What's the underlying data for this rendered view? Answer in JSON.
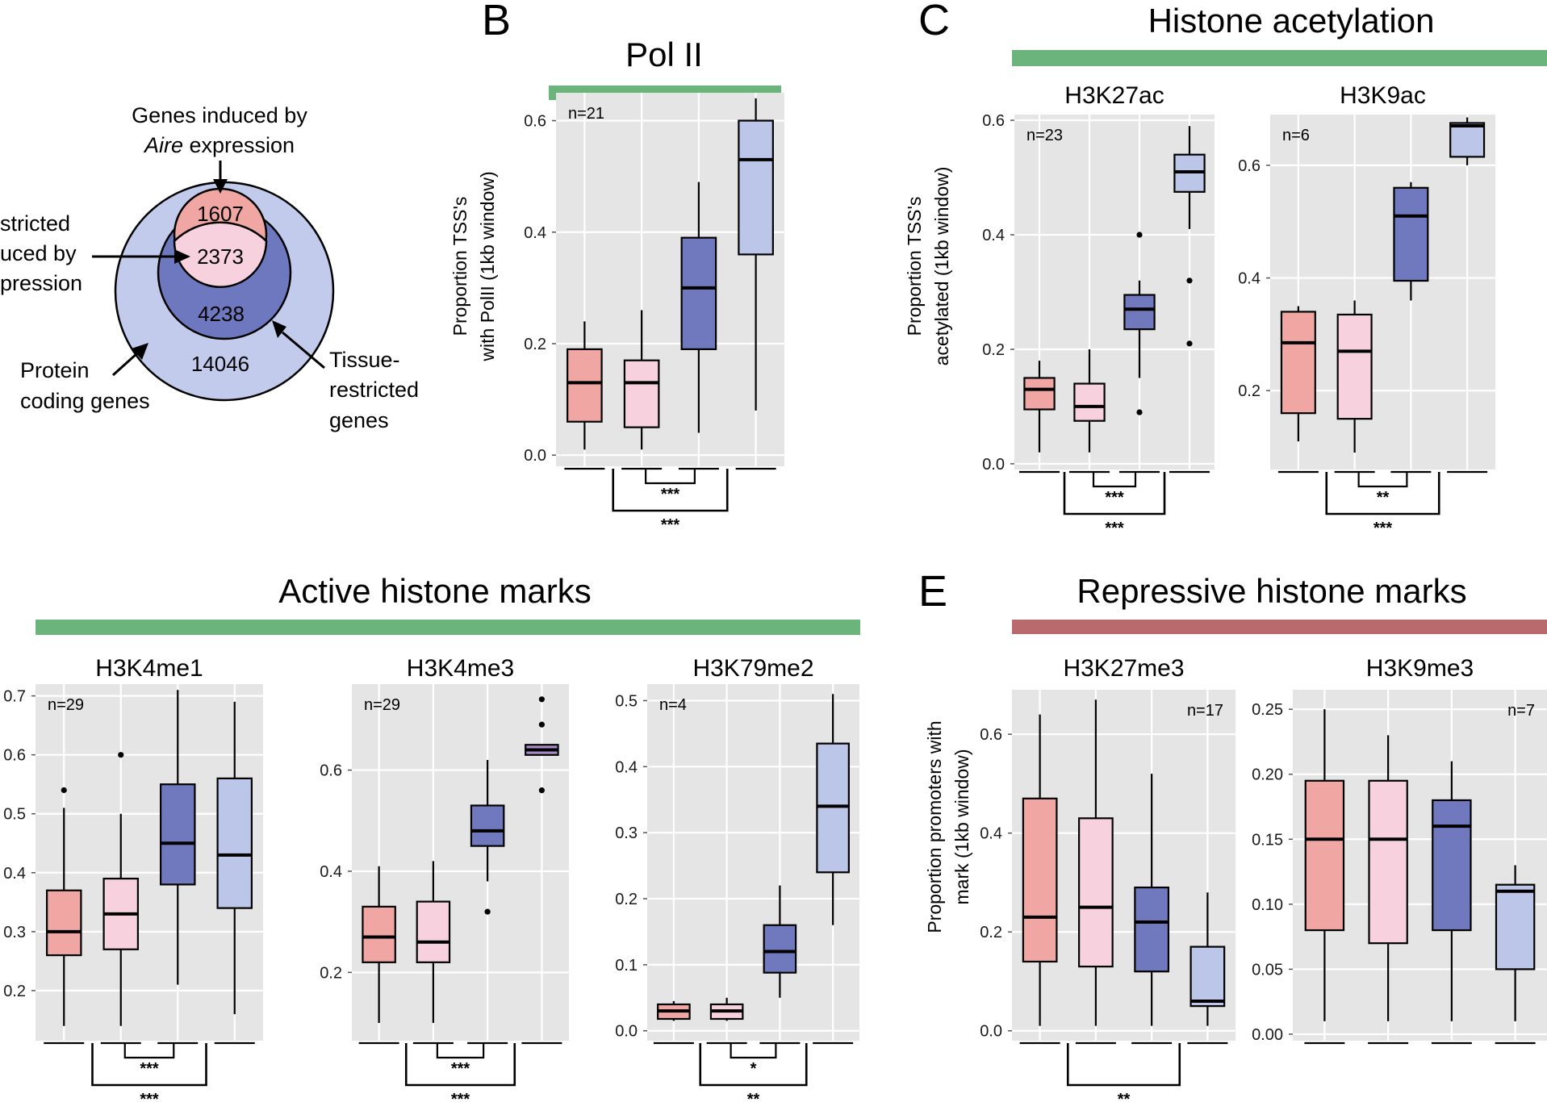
{
  "colors": {
    "group1": "#f0a6a3",
    "group2": "#f7d2de",
    "group3": "#7179be",
    "group4": "#bcc6e8",
    "panel_bg": "#e5e5e5",
    "grid": "#ffffff",
    "bar_active": "#6bb57d",
    "bar_repressive": "#b86a6c",
    "tick_text": "#1a1a1a",
    "venn_outer": "#c3cbec",
    "venn_mid": "#6e78be",
    "venn_top": "#f0a6a3",
    "venn_overlap": "#f7d2de"
  },
  "panel_letters": [
    "B",
    "C",
    "E"
  ],
  "headers": {
    "pol2": "Pol II",
    "acetylation": "Histone acetylation",
    "active": "Active histone marks",
    "repressive": "Repressive histone marks"
  },
  "venn": {
    "label_top_line1": "Genes induced by",
    "label_top_italic": "Aire",
    "label_top_rest": " expression",
    "label_left_line1": "stricted",
    "label_left_line2": "uced by",
    "label_left_line3": "pression",
    "label_protein_line1": "Protein",
    "label_protein_line2": "coding genes",
    "label_tissue_line1": "Tissue-",
    "label_tissue_line2": "restricted",
    "label_tissue_line3": "genes",
    "counts": {
      "top": "1607",
      "overlap": "2373",
      "middle": "4238",
      "outer": "14046"
    }
  },
  "ylabels": {
    "pol2_line1": "Proportion TSS's",
    "pol2_line2": "with PolII (1kb window)",
    "acet_line1": "Proportion TSS's",
    "acet_line2": "acetylated (1kb window)",
    "rep_line1": "Proportion promoters with",
    "rep_line2": "mark (1kb window)"
  },
  "chart_data": [
    {
      "type": "box",
      "id": "pol2",
      "title": "",
      "n_label": "n=21",
      "n_pos": "left",
      "ylim": [
        -0.02,
        0.65
      ],
      "yticks": [
        "0.0",
        "0.2",
        "0.4",
        "0.6"
      ],
      "boxes": [
        {
          "group": 1,
          "whisker_low": 0.01,
          "q1": 0.06,
          "median": 0.13,
          "q3": 0.19,
          "whisker_high": 0.24,
          "outliers": []
        },
        {
          "group": 2,
          "whisker_low": 0.01,
          "q1": 0.05,
          "median": 0.13,
          "q3": 0.17,
          "whisker_high": 0.26,
          "outliers": []
        },
        {
          "group": 3,
          "whisker_low": 0.04,
          "q1": 0.19,
          "median": 0.3,
          "q3": 0.39,
          "whisker_high": 0.49,
          "outliers": []
        },
        {
          "group": 4,
          "whisker_low": 0.08,
          "q1": 0.36,
          "median": 0.53,
          "q3": 0.6,
          "whisker_high": 0.64,
          "outliers": []
        }
      ],
      "sig_inner": "***",
      "sig_outer": "***"
    },
    {
      "type": "box",
      "id": "h3k27ac",
      "title": "H3K27ac",
      "n_label": "n=23",
      "n_pos": "left",
      "ylim": [
        -0.01,
        0.61
      ],
      "yticks": [
        "0.0",
        "0.2",
        "0.4",
        "0.6"
      ],
      "boxes": [
        {
          "group": 1,
          "whisker_low": 0.02,
          "q1": 0.095,
          "median": 0.13,
          "q3": 0.15,
          "whisker_high": 0.18,
          "outliers": []
        },
        {
          "group": 2,
          "whisker_low": 0.02,
          "q1": 0.075,
          "median": 0.1,
          "q3": 0.14,
          "whisker_high": 0.2,
          "outliers": []
        },
        {
          "group": 3,
          "whisker_low": 0.15,
          "q1": 0.235,
          "median": 0.27,
          "q3": 0.295,
          "whisker_high": 0.32,
          "outliers": [
            0.09,
            0.4
          ]
        },
        {
          "group": 4,
          "whisker_low": 0.41,
          "q1": 0.475,
          "median": 0.51,
          "q3": 0.54,
          "whisker_high": 0.59,
          "outliers": [
            0.21,
            0.32
          ]
        }
      ],
      "sig_inner": "***",
      "sig_outer": "***"
    },
    {
      "type": "box",
      "id": "h3k9ac",
      "title": "H3K9ac",
      "n_label": "n=6",
      "n_pos": "left",
      "ylim": [
        0.06,
        0.69
      ],
      "yticks": [
        "0.2",
        "0.4",
        "0.6"
      ],
      "boxes": [
        {
          "group": 1,
          "whisker_low": 0.11,
          "q1": 0.16,
          "median": 0.285,
          "q3": 0.34,
          "whisker_high": 0.35,
          "outliers": []
        },
        {
          "group": 2,
          "whisker_low": 0.09,
          "q1": 0.15,
          "median": 0.27,
          "q3": 0.335,
          "whisker_high": 0.36,
          "outliers": []
        },
        {
          "group": 3,
          "whisker_low": 0.36,
          "q1": 0.395,
          "median": 0.51,
          "q3": 0.56,
          "whisker_high": 0.57,
          "outliers": []
        },
        {
          "group": 4,
          "whisker_low": 0.6,
          "q1": 0.615,
          "median": 0.67,
          "q3": 0.675,
          "whisker_high": 0.685,
          "outliers": []
        }
      ],
      "sig_inner": "**",
      "sig_outer": "***"
    },
    {
      "type": "box",
      "id": "h3k4me1",
      "title": "H3K4me1",
      "n_label": "n=29",
      "n_pos": "left",
      "ylim": [
        0.115,
        0.72
      ],
      "yticks": [
        "0.2",
        "0.3",
        "0.4",
        "0.5",
        "0.6",
        "0.7"
      ],
      "boxes": [
        {
          "group": 1,
          "whisker_low": 0.14,
          "q1": 0.26,
          "median": 0.3,
          "q3": 0.37,
          "whisker_high": 0.51,
          "outliers": [
            0.54
          ]
        },
        {
          "group": 2,
          "whisker_low": 0.14,
          "q1": 0.27,
          "median": 0.33,
          "q3": 0.39,
          "whisker_high": 0.5,
          "outliers": [
            0.6
          ]
        },
        {
          "group": 3,
          "whisker_low": 0.21,
          "q1": 0.38,
          "median": 0.45,
          "q3": 0.55,
          "whisker_high": 0.71,
          "outliers": []
        },
        {
          "group": 4,
          "whisker_low": 0.16,
          "q1": 0.34,
          "median": 0.43,
          "q3": 0.56,
          "whisker_high": 0.69,
          "outliers": []
        }
      ],
      "sig_inner": "***",
      "sig_outer": "***"
    },
    {
      "type": "box",
      "id": "h3k4me3",
      "title": "H3K4me3",
      "n_label": "n=29",
      "n_pos": "left",
      "ylim": [
        0.065,
        0.77
      ],
      "yticks": [
        "0.2",
        "0.4",
        "0.6"
      ],
      "boxes": [
        {
          "group": 1,
          "whisker_low": 0.1,
          "q1": 0.22,
          "median": 0.27,
          "q3": 0.33,
          "whisker_high": 0.41,
          "outliers": []
        },
        {
          "group": 2,
          "whisker_low": 0.1,
          "q1": 0.22,
          "median": 0.26,
          "q3": 0.34,
          "whisker_high": 0.42,
          "outliers": []
        },
        {
          "group": 3,
          "whisker_low": 0.38,
          "q1": 0.45,
          "median": 0.48,
          "q3": 0.53,
          "whisker_high": 0.62,
          "outliers": [
            0.32
          ]
        },
        {
          "group": 4,
          "whisker_low": 0.63,
          "q1": 0.63,
          "median": 0.64,
          "q3": 0.65,
          "whisker_high": 0.65,
          "outliers": [
            0.56,
            0.69,
            0.74
          ]
        }
      ],
      "sig_inner": "***",
      "sig_outer": "***"
    },
    {
      "type": "box",
      "id": "h3k79me2",
      "title": "H3K79me2",
      "n_label": "n=4",
      "n_pos": "left",
      "ylim": [
        -0.015,
        0.525
      ],
      "yticks": [
        "0.0",
        "0.1",
        "0.2",
        "0.3",
        "0.4",
        "0.5"
      ],
      "boxes": [
        {
          "group": 1,
          "whisker_low": 0.015,
          "q1": 0.018,
          "median": 0.03,
          "q3": 0.04,
          "whisker_high": 0.045,
          "outliers": []
        },
        {
          "group": 2,
          "whisker_low": 0.015,
          "q1": 0.018,
          "median": 0.03,
          "q3": 0.04,
          "whisker_high": 0.05,
          "outliers": []
        },
        {
          "group": 3,
          "whisker_low": 0.05,
          "q1": 0.088,
          "median": 0.12,
          "q3": 0.16,
          "whisker_high": 0.22,
          "outliers": []
        },
        {
          "group": 4,
          "whisker_low": 0.16,
          "q1": 0.24,
          "median": 0.34,
          "q3": 0.435,
          "whisker_high": 0.51,
          "outliers": []
        }
      ],
      "sig_inner": "*",
      "sig_outer": "**"
    },
    {
      "type": "box",
      "id": "h3k27me3",
      "title": "H3K27me3",
      "n_label": "n=17",
      "n_pos": "right",
      "ylim": [
        -0.02,
        0.69
      ],
      "yticks": [
        "0.0",
        "0.2",
        "0.4",
        "0.6"
      ],
      "boxes": [
        {
          "group": 1,
          "whisker_low": 0.01,
          "q1": 0.14,
          "median": 0.23,
          "q3": 0.47,
          "whisker_high": 0.64,
          "outliers": []
        },
        {
          "group": 2,
          "whisker_low": 0.01,
          "q1": 0.13,
          "median": 0.25,
          "q3": 0.43,
          "whisker_high": 0.67,
          "outliers": []
        },
        {
          "group": 3,
          "whisker_low": 0.01,
          "q1": 0.12,
          "median": 0.22,
          "q3": 0.29,
          "whisker_high": 0.52,
          "outliers": []
        },
        {
          "group": 4,
          "whisker_low": 0.01,
          "q1": 0.05,
          "median": 0.06,
          "q3": 0.17,
          "whisker_high": 0.28,
          "outliers": []
        }
      ],
      "sig_inner": "",
      "sig_outer": "**"
    },
    {
      "type": "box",
      "id": "h3k9me3",
      "title": "H3K9me3",
      "n_label": "n=7",
      "n_pos": "right",
      "ylim": [
        -0.005,
        0.265
      ],
      "yticks": [
        "0.00",
        "0.05",
        "0.10",
        "0.15",
        "0.20",
        "0.25"
      ],
      "boxes": [
        {
          "group": 1,
          "whisker_low": 0.01,
          "q1": 0.08,
          "median": 0.15,
          "q3": 0.195,
          "whisker_high": 0.25,
          "outliers": []
        },
        {
          "group": 2,
          "whisker_low": 0.01,
          "q1": 0.07,
          "median": 0.15,
          "q3": 0.195,
          "whisker_high": 0.23,
          "outliers": []
        },
        {
          "group": 3,
          "whisker_low": 0.01,
          "q1": 0.08,
          "median": 0.16,
          "q3": 0.18,
          "whisker_high": 0.21,
          "outliers": []
        },
        {
          "group": 4,
          "whisker_low": 0.01,
          "q1": 0.05,
          "median": 0.11,
          "q3": 0.115,
          "whisker_high": 0.13,
          "outliers": []
        }
      ],
      "sig_inner": "",
      "sig_outer": ""
    }
  ]
}
